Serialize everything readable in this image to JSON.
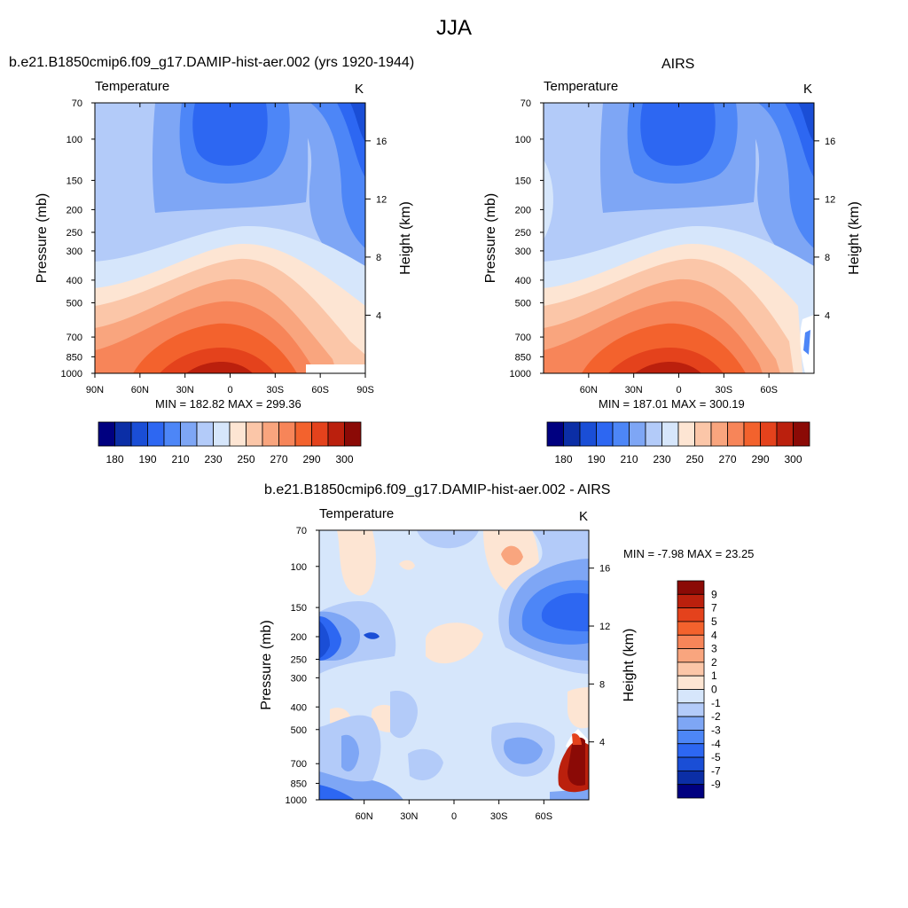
{
  "figure_title": "JJA",
  "chart_data": [
    {
      "type": "heatmap",
      "title": "b.e21.B1850cmip6.f09_g17.DAMIP-hist-aer.002 (yrs 1920-1944)",
      "subtitle_left": "Temperature",
      "subtitle_right": "K",
      "xlabel": "",
      "ylabel": "Pressure (mb)",
      "ylabel_right": "Height (km)",
      "x_ticks": [
        "90N",
        "60N",
        "30N",
        "0",
        "30S",
        "60S",
        "90S"
      ],
      "x_tick_values": [
        90,
        60,
        30,
        0,
        -30,
        -60,
        -90
      ],
      "xlim": [
        90,
        -90
      ],
      "y_ticks": [
        70,
        100,
        150,
        200,
        250,
        300,
        400,
        500,
        700,
        850,
        1000
      ],
      "ylim": [
        1000,
        70
      ],
      "y_scale": "log",
      "height_ticks": [
        4,
        8,
        12,
        16
      ],
      "stats": "MIN = 182.82  MAX = 299.36",
      "colorbar": {
        "orientation": "horizontal",
        "labels": [
          "180",
          "190",
          "210",
          "230",
          "250",
          "270",
          "290",
          "300"
        ],
        "colors": [
          "#000080",
          "#0b2ea6",
          "#1a4ed6",
          "#2d67f2",
          "#4d86f7",
          "#7ea6f5",
          "#b3cbf9",
          "#d6e6fb",
          "#fde5d3",
          "#fbc6a8",
          "#f9a57e",
          "#f78559",
          "#f3622d",
          "#e4421c",
          "#bb200d",
          "#8b0a06"
        ]
      }
    },
    {
      "type": "heatmap",
      "title": "AIRS",
      "subtitle_left": "Temperature",
      "subtitle_right": "K",
      "xlabel": "",
      "ylabel": "Pressure (mb)",
      "ylabel_right": "Height (km)",
      "x_ticks": [
        "60N",
        "30N",
        "0",
        "30S",
        "60S"
      ],
      "x_tick_values": [
        60,
        30,
        0,
        -30,
        -60
      ],
      "xlim": [
        90,
        -90
      ],
      "y_ticks": [
        70,
        100,
        150,
        200,
        250,
        300,
        400,
        500,
        700,
        850,
        1000
      ],
      "ylim": [
        1000,
        70
      ],
      "y_scale": "log",
      "height_ticks": [
        4,
        8,
        12,
        16
      ],
      "stats": "MIN = 187.01  MAX = 300.19",
      "colorbar": {
        "orientation": "horizontal",
        "labels": [
          "180",
          "190",
          "210",
          "230",
          "250",
          "270",
          "290",
          "300"
        ],
        "colors": [
          "#000080",
          "#0b2ea6",
          "#1a4ed6",
          "#2d67f2",
          "#4d86f7",
          "#7ea6f5",
          "#b3cbf9",
          "#d6e6fb",
          "#fde5d3",
          "#fbc6a8",
          "#f9a57e",
          "#f78559",
          "#f3622d",
          "#e4421c",
          "#bb200d",
          "#8b0a06"
        ]
      }
    },
    {
      "type": "heatmap",
      "title": "b.e21.B1850cmip6.f09_g17.DAMIP-hist-aer.002 - AIRS",
      "subtitle_left": "Temperature",
      "subtitle_right": "K",
      "xlabel": "",
      "ylabel": "Pressure (mb)",
      "ylabel_right": "Height (km)",
      "x_ticks": [
        "60N",
        "30N",
        "0",
        "30S",
        "60S"
      ],
      "x_tick_values": [
        60,
        30,
        0,
        -30,
        -60
      ],
      "xlim": [
        90,
        -90
      ],
      "y_ticks": [
        70,
        100,
        150,
        200,
        250,
        300,
        400,
        500,
        700,
        850,
        1000
      ],
      "ylim": [
        1000,
        70
      ],
      "y_scale": "log",
      "height_ticks": [
        4,
        8,
        12,
        16
      ],
      "stats": "MIN =  -7.98  MAX =  23.25",
      "colorbar": {
        "orientation": "vertical",
        "labels": [
          "9",
          "7",
          "5",
          "4",
          "3",
          "2",
          "1",
          "0",
          "-1",
          "-2",
          "-3",
          "-4",
          "-5",
          "-7",
          "-9"
        ],
        "colors": [
          "#8b0a06",
          "#bb200d",
          "#e4421c",
          "#f3622d",
          "#f78559",
          "#f9a57e",
          "#fbc6a8",
          "#fde5d3",
          "#d6e6fb",
          "#b3cbf9",
          "#7ea6f5",
          "#4d86f7",
          "#2d67f2",
          "#1a4ed6",
          "#0b2ea6",
          "#000080"
        ]
      }
    }
  ]
}
